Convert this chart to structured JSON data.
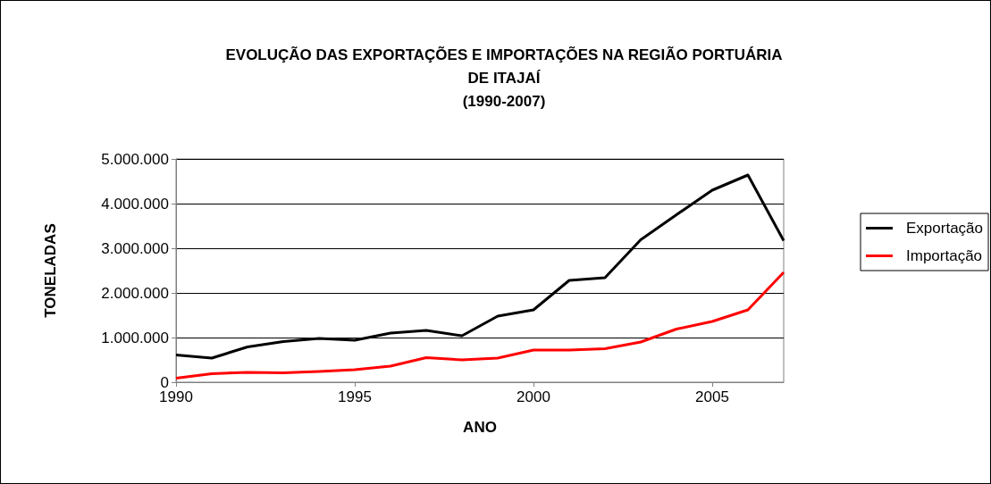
{
  "chart_data": {
    "type": "line",
    "title": "EVOLUÇÃO DAS EXPORTAÇÕES E IMPORTAÇÕES NA REGIÃO PORTUÁRIA\nDE ITAJAÍ\n(1990-2007)",
    "xlabel": "ANO",
    "ylabel": "TONELADAS",
    "x": [
      1990,
      1991,
      1992,
      1993,
      1994,
      1995,
      1996,
      1997,
      1998,
      1999,
      2000,
      2001,
      2002,
      2003,
      2004,
      2005,
      2006,
      2007
    ],
    "series": [
      {
        "name": "Exportação",
        "color": "#000000",
        "values": [
          610000,
          540000,
          790000,
          910000,
          980000,
          940000,
          1100000,
          1160000,
          1040000,
          1480000,
          1620000,
          2280000,
          2340000,
          3190000,
          3750000,
          4300000,
          4640000,
          3170000
        ]
      },
      {
        "name": "Importação",
        "color": "#ff0000",
        "values": [
          90000,
          190000,
          220000,
          210000,
          240000,
          280000,
          360000,
          550000,
          500000,
          540000,
          720000,
          720000,
          750000,
          900000,
          1190000,
          1360000,
          1620000,
          2460000
        ]
      }
    ],
    "xlim": [
      1990,
      2007
    ],
    "xticks": [
      1990,
      1995,
      2000,
      2005
    ],
    "ylim": [
      0,
      5000000
    ],
    "yticks": [
      0,
      {
        "value": 1000000,
        "label": "1.000.000"
      },
      {
        "value": 2000000,
        "label": "2.000.000"
      },
      {
        "value": 3000000,
        "label": "3.000.000"
      },
      {
        "value": 4000000,
        "label": "4.000.000"
      },
      {
        "value": 5000000,
        "label": "5.000.000"
      }
    ],
    "grid": "y",
    "legend": "right",
    "marker": "none",
    "line_style": "solid"
  }
}
